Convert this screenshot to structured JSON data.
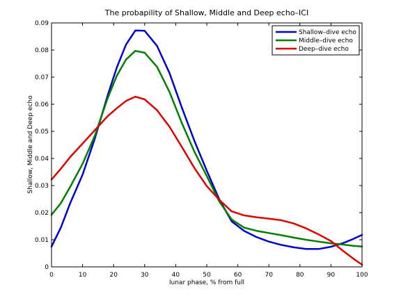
{
  "chart_data": {
    "type": "line",
    "title": "The probapility of Shallow, Middle and Deep echo–ICI",
    "xlabel": "lunar phase, % from full",
    "ylabel": "Shallow, Middle and Deep echo",
    "xlim": [
      0,
      100
    ],
    "ylim": [
      0,
      0.09
    ],
    "xticks": [
      "0",
      "10",
      "20",
      "30",
      "40",
      "50",
      "60",
      "70",
      "80",
      "90",
      "100"
    ],
    "yticks": [
      "0",
      "0.01",
      "0.02",
      "0.03",
      "0.04",
      "0.05",
      "0.06",
      "0.07",
      "0.08",
      "0.09"
    ],
    "grid": false,
    "legend_position": "top-right",
    "series": [
      {
        "name": "Shallow–dive echo",
        "color": "#0000cc",
        "x": [
          0,
          3,
          6,
          10,
          14,
          18,
          21,
          24,
          27,
          30,
          34,
          38,
          42,
          46,
          50,
          54,
          58,
          62,
          66,
          70,
          74,
          78,
          82,
          86,
          90,
          94,
          97,
          100
        ],
        "y": [
          0.0075,
          0.0145,
          0.0235,
          0.034,
          0.0475,
          0.063,
          0.0735,
          0.082,
          0.0872,
          0.0871,
          0.0815,
          0.0715,
          0.0587,
          0.0465,
          0.0355,
          0.025,
          0.0168,
          0.0133,
          0.011,
          0.0093,
          0.0081,
          0.0072,
          0.0066,
          0.0066,
          0.0074,
          0.0088,
          0.0102,
          0.0118
        ]
      },
      {
        "name": "Middle–dive echo",
        "color": "#007f00",
        "x": [
          0,
          3,
          6,
          10,
          14,
          18,
          21,
          24,
          27,
          30,
          34,
          38,
          42,
          46,
          50,
          54,
          58,
          62,
          66,
          70,
          74,
          78,
          82,
          86,
          90,
          94,
          97,
          100
        ],
        "y": [
          0.0192,
          0.0235,
          0.0295,
          0.038,
          0.0485,
          0.062,
          0.0705,
          0.0765,
          0.0797,
          0.079,
          0.0738,
          0.0645,
          0.053,
          0.0425,
          0.0335,
          0.0242,
          0.0175,
          0.0145,
          0.0133,
          0.0125,
          0.0117,
          0.0108,
          0.01,
          0.0093,
          0.0087,
          0.0082,
          0.0078,
          0.0075
        ]
      },
      {
        "name": "Deep–dive echo",
        "color": "#dd0000",
        "x": [
          0,
          3,
          6,
          10,
          14,
          18,
          21,
          24,
          27,
          30,
          34,
          38,
          42,
          46,
          50,
          54,
          58,
          62,
          66,
          70,
          74,
          78,
          82,
          86,
          90,
          94,
          97,
          100
        ],
        "y": [
          0.0322,
          0.0362,
          0.0405,
          0.0455,
          0.0505,
          0.0555,
          0.0585,
          0.0612,
          0.0628,
          0.0618,
          0.0578,
          0.0517,
          0.0442,
          0.0365,
          0.0298,
          0.0248,
          0.0205,
          0.019,
          0.0183,
          0.0178,
          0.0172,
          0.016,
          0.0142,
          0.012,
          0.0095,
          0.0058,
          0.0032,
          0.0008
        ]
      }
    ]
  }
}
